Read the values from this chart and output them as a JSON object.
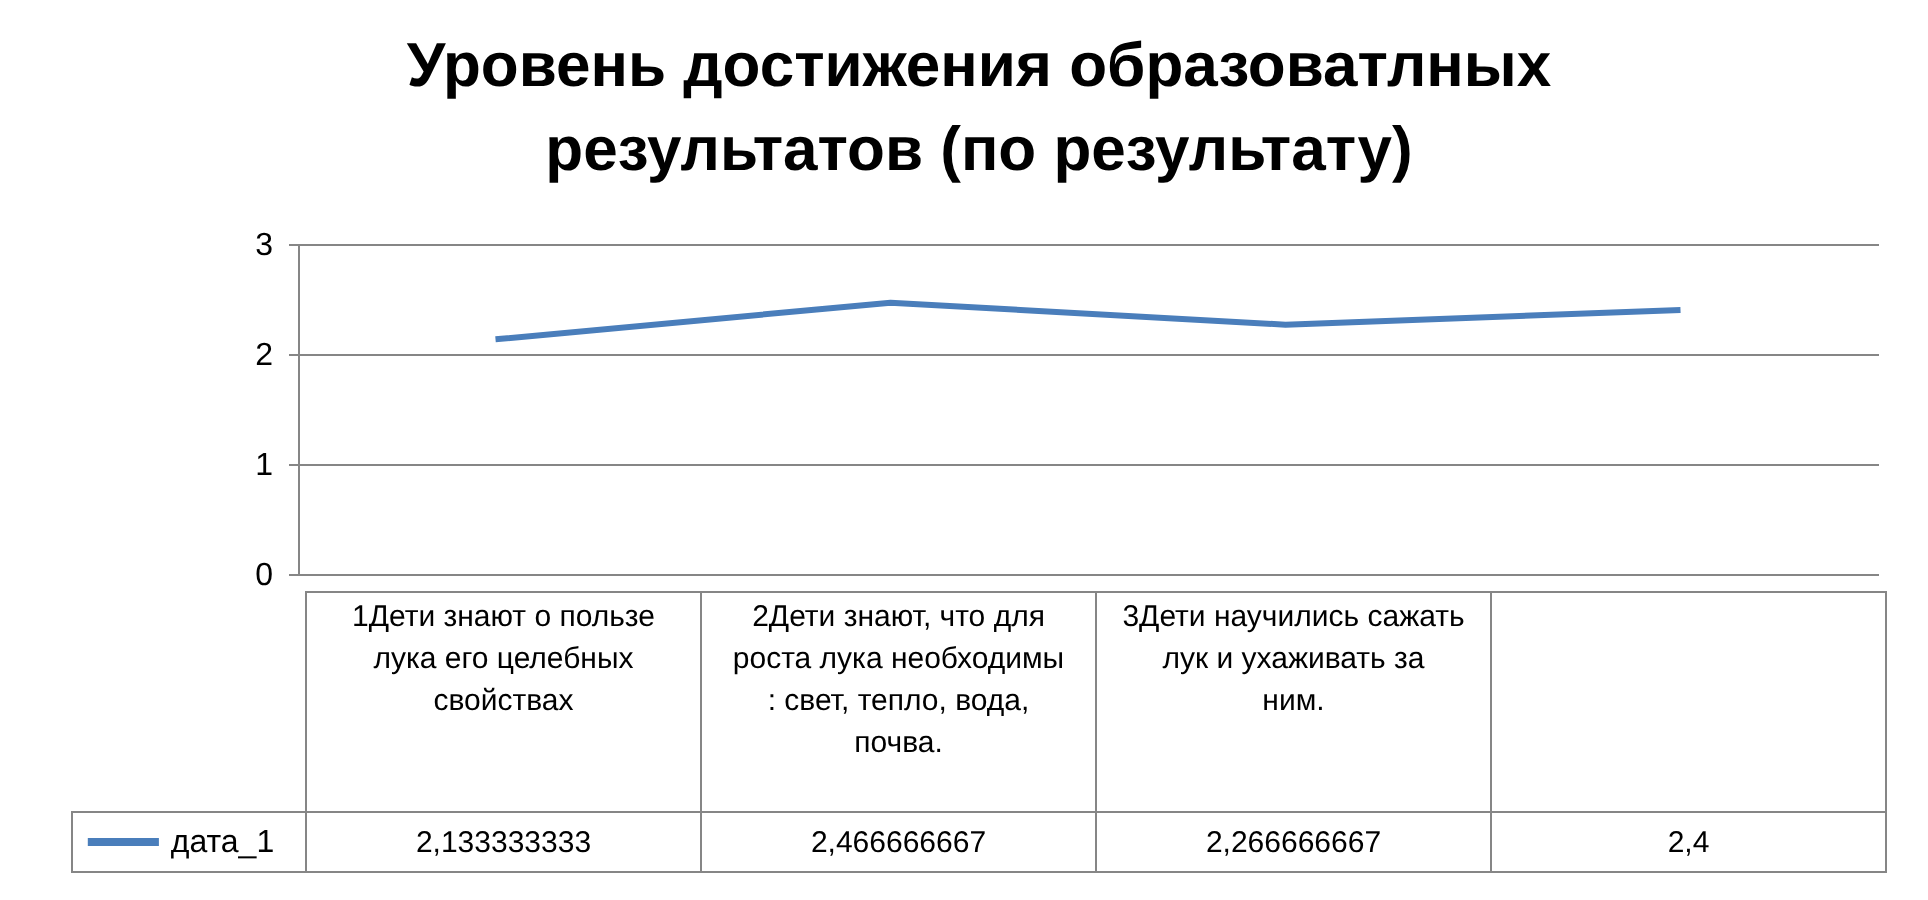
{
  "chart_data": {
    "type": "line",
    "title": "Уровень достижения образоватлных результатов (по результату)",
    "categories": [
      "1Дети знают о пользе лука его целебных  свойствах",
      "2Дети знают, что для роста лука необходимы : свет, тепло, вода, почва.",
      "3Дети научились сажать лук и ухаживать за ним.",
      null
    ],
    "series": [
      {
        "name": "дата_1",
        "color": "#4a7ebb",
        "values": [
          2.133333333,
          2.466666667,
          2.266666667,
          2.4
        ],
        "value_labels": [
          "2,133333333",
          "2,466666667",
          "2,266666667",
          "2,4"
        ]
      }
    ],
    "ylim": [
      0,
      3
    ],
    "yticks": [
      0,
      1,
      2,
      3
    ],
    "grid": "y",
    "legend": "bottom left"
  }
}
